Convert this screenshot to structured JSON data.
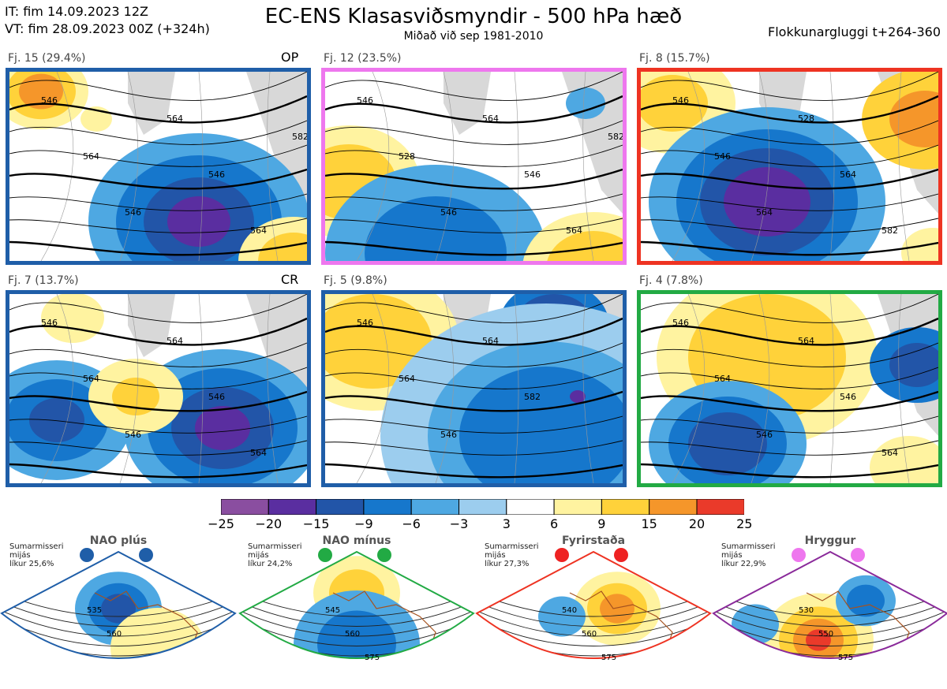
{
  "header": {
    "initial_time": "IT: fim 14.09.2023 12Z",
    "valid_time": "VT: fim 28.09.2023 00Z  (+324h)",
    "title": "EC-ENS Klasasviðsmyndir - 500 hPa hæð",
    "subtitle": "Miðað við sep 1981-2010",
    "window": "Flokkunargluggi t+264-360"
  },
  "panels": [
    {
      "label": "Fj. 15 (29.4%)",
      "tag": "OP",
      "border": "#1f5ea8",
      "contours": [
        "546",
        "564",
        "546",
        "564",
        "546",
        "564",
        "582"
      ]
    },
    {
      "label": "Fj. 12 (23.5%)",
      "tag": "",
      "border": "#ee77ee",
      "contours": [
        "546",
        "528",
        "546",
        "564",
        "546",
        "564",
        "582"
      ]
    },
    {
      "label": "Fj. 8 (15.7%)",
      "tag": "",
      "border": "#ee3322",
      "contours": [
        "546",
        "546",
        "564",
        "528",
        "564",
        "582"
      ]
    },
    {
      "label": "Fj. 7 (13.7%)",
      "tag": "CR",
      "border": "#1f5ea8",
      "contours": [
        "546",
        "564",
        "546",
        "564",
        "546",
        "564"
      ]
    },
    {
      "label": "Fj. 5 (9.8%)",
      "tag": "",
      "border": "#1f5ea8",
      "contours": [
        "546",
        "564",
        "546",
        "564",
        "582"
      ]
    },
    {
      "label": "Fj. 4 (7.8%)",
      "tag": "",
      "border": "#22aa44",
      "contours": [
        "546",
        "564",
        "546",
        "564",
        "546",
        "564"
      ]
    }
  ],
  "colorbar": {
    "ticks": [
      "−25",
      "−20",
      "−15",
      "−9",
      "−6",
      "−3",
      "3",
      "6",
      "9",
      "15",
      "20",
      "25"
    ],
    "colors": [
      "#8a4ea0",
      "#5a2ea0",
      "#2255a8",
      "#1677cc",
      "#4ea8e2",
      "#9ccdee",
      "#ffffff",
      "#fff3a0",
      "#ffd23a",
      "#f5962a",
      "#ea3a2a",
      "#b80e14"
    ]
  },
  "regimes": [
    {
      "name": "NAO plús",
      "note1": "Sumarmisseri",
      "note2": "mijás",
      "note3": "líkur 25,6%",
      "color": "#1f5ea8",
      "dot": "#1f5ea8",
      "contours": [
        "535",
        "560"
      ]
    },
    {
      "name": "NAO mínus",
      "note1": "Sumarmisseri",
      "note2": "mijás",
      "note3": "líkur 24,2%",
      "color": "#22aa44",
      "dot": "#22aa44",
      "contours": [
        "545",
        "560",
        "575"
      ]
    },
    {
      "name": "Fyrirstaða",
      "note1": "Sumarmisseri",
      "note2": "mijás",
      "note3": "líkur 27,3%",
      "color": "#ee3322",
      "dot": "#ee2222",
      "contours": [
        "540",
        "560",
        "575"
      ]
    },
    {
      "name": "Hryggur",
      "note1": "Sumarmisseri",
      "note2": "mijás",
      "note3": "líkur 22,9%",
      "color": "#8a2a9a",
      "dot": "#ee77ee",
      "contours": [
        "530",
        "550",
        "575"
      ]
    }
  ]
}
